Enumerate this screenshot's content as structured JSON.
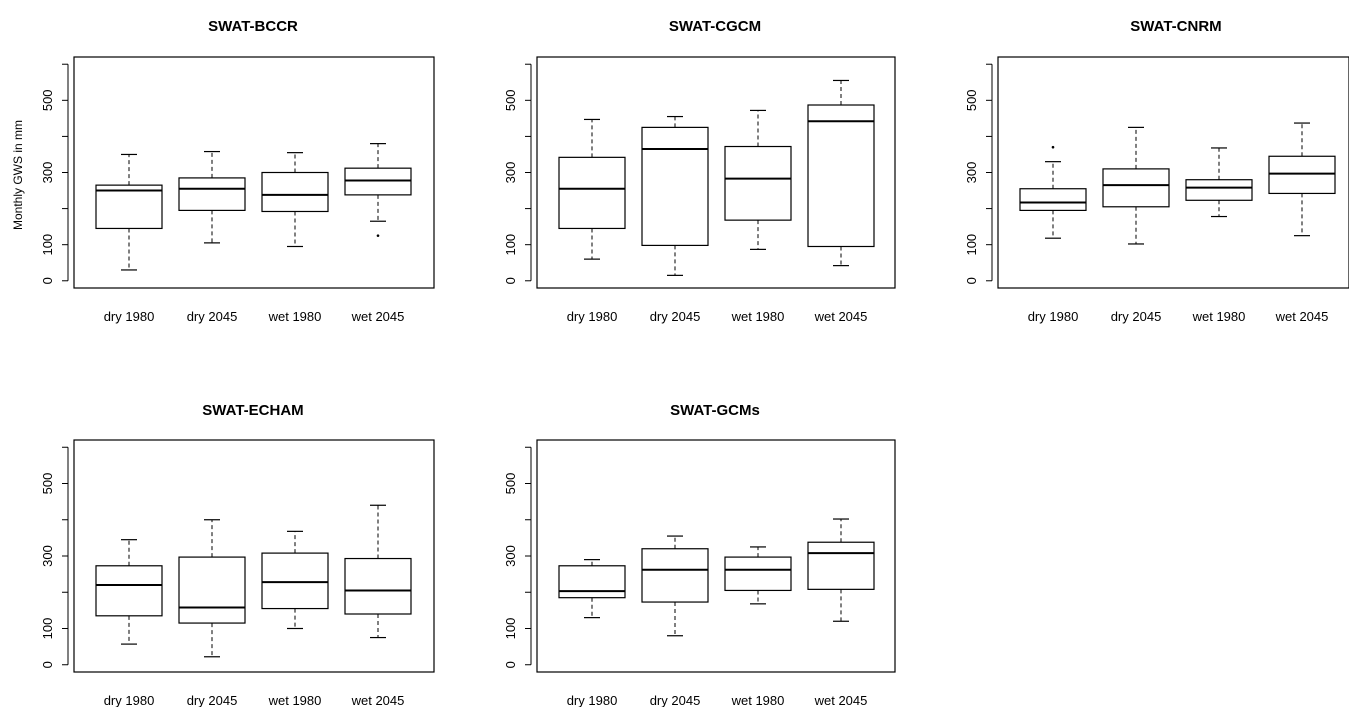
{
  "chart_data": [
    {
      "type": "box",
      "title": "SWAT-BCCR",
      "ylabel": "Monthly GWS in mm",
      "categories": [
        "dry 1980",
        "dry 2045",
        "wet 1980",
        "wet 2045"
      ],
      "yticks": [
        0,
        100,
        300,
        500
      ],
      "ylim": [
        -20,
        620
      ],
      "boxes": [
        {
          "min": 30,
          "q1": 145,
          "median": 250,
          "q3": 265,
          "max": 350
        },
        {
          "min": 105,
          "q1": 195,
          "median": 255,
          "q3": 285,
          "max": 358
        },
        {
          "min": 95,
          "q1": 192,
          "median": 238,
          "q3": 300,
          "max": 355
        },
        {
          "min": 165,
          "q1": 238,
          "median": 278,
          "q3": 312,
          "max": 380
        }
      ],
      "outliers": [
        {
          "box": 3,
          "value": 125
        }
      ]
    },
    {
      "type": "box",
      "title": "SWAT-CGCM",
      "categories": [
        "dry 1980",
        "dry 2045",
        "wet 1980",
        "wet 2045"
      ],
      "yticks": [
        0,
        100,
        300,
        500
      ],
      "ylim": [
        -20,
        620
      ],
      "boxes": [
        {
          "min": 60,
          "q1": 145,
          "median": 255,
          "q3": 342,
          "max": 447
        },
        {
          "min": 15,
          "q1": 98,
          "median": 365,
          "q3": 425,
          "max": 455
        },
        {
          "min": 87,
          "q1": 168,
          "median": 283,
          "q3": 372,
          "max": 472
        },
        {
          "min": 42,
          "q1": 95,
          "median": 442,
          "q3": 487,
          "max": 555
        }
      ],
      "outliers": []
    },
    {
      "type": "box",
      "title": "SWAT-CNRM",
      "categories": [
        "dry 1980",
        "dry 2045",
        "wet 1980",
        "wet 2045"
      ],
      "yticks": [
        0,
        100,
        300,
        500
      ],
      "ylim": [
        -20,
        620
      ],
      "boxes": [
        {
          "min": 118,
          "q1": 195,
          "median": 217,
          "q3": 255,
          "max": 330
        },
        {
          "min": 102,
          "q1": 205,
          "median": 265,
          "q3": 310,
          "max": 425
        },
        {
          "min": 178,
          "q1": 223,
          "median": 258,
          "q3": 280,
          "max": 368
        },
        {
          "min": 125,
          "q1": 242,
          "median": 297,
          "q3": 345,
          "max": 437
        }
      ],
      "outliers": [
        {
          "box": 0,
          "value": 370
        }
      ]
    },
    {
      "type": "box",
      "title": "SWAT-ECHAM",
      "categories": [
        "dry 1980",
        "dry 2045",
        "wet 1980",
        "wet 2045"
      ],
      "yticks": [
        0,
        100,
        300,
        500
      ],
      "ylim": [
        -20,
        620
      ],
      "boxes": [
        {
          "min": 57,
          "q1": 135,
          "median": 220,
          "q3": 273,
          "max": 345
        },
        {
          "min": 22,
          "q1": 115,
          "median": 158,
          "q3": 297,
          "max": 400
        },
        {
          "min": 100,
          "q1": 155,
          "median": 228,
          "q3": 308,
          "max": 368
        },
        {
          "min": 75,
          "q1": 140,
          "median": 205,
          "q3": 293,
          "max": 440
        }
      ],
      "outliers": []
    },
    {
      "type": "box",
      "title": "SWAT-GCMs",
      "categories": [
        "dry 1980",
        "dry 2045",
        "wet 1980",
        "wet 2045"
      ],
      "yticks": [
        0,
        100,
        300,
        500
      ],
      "ylim": [
        -20,
        620
      ],
      "boxes": [
        {
          "min": 130,
          "q1": 185,
          "median": 203,
          "q3": 273,
          "max": 290
        },
        {
          "min": 80,
          "q1": 173,
          "median": 262,
          "q3": 320,
          "max": 355
        },
        {
          "min": 168,
          "q1": 205,
          "median": 262,
          "q3": 297,
          "max": 325
        },
        {
          "min": 120,
          "q1": 208,
          "median": 308,
          "q3": 338,
          "max": 402
        }
      ],
      "outliers": []
    }
  ]
}
